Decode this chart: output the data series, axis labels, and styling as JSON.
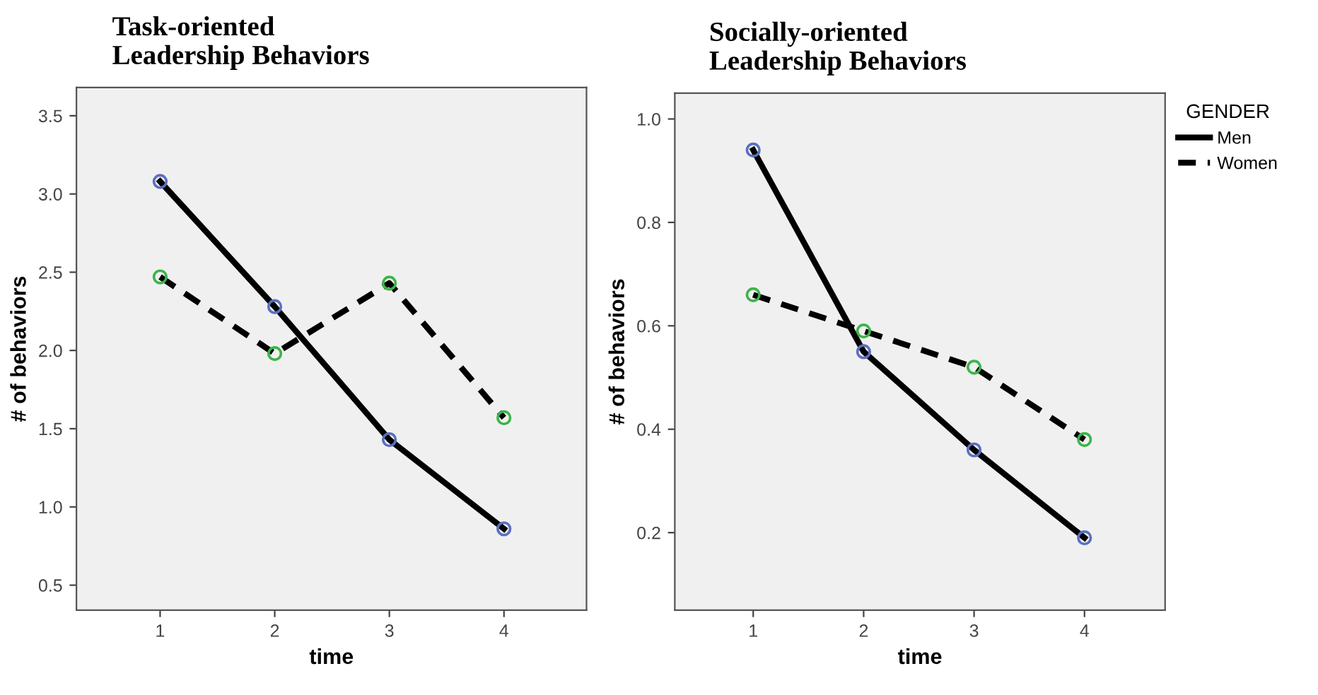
{
  "chart_data": [
    {
      "type": "line",
      "title": "Task-oriented\nLeadership Behaviors",
      "xlabel": "time",
      "ylabel": "# of behaviors",
      "x": [
        1,
        2,
        3,
        4
      ],
      "xlim": [
        0.27,
        4.72
      ],
      "xticks": [
        1,
        2,
        3,
        4
      ],
      "ylim": [
        0.34,
        3.68
      ],
      "yticks": [
        {
          "value": 0.5,
          "label": "0.5"
        },
        {
          "value": 1.0,
          "label": "1.0"
        },
        {
          "value": 1.5,
          "label": "1.5"
        },
        {
          "value": 2.0,
          "label": "2.0"
        },
        {
          "value": 2.5,
          "label": "2.5"
        },
        {
          "value": 3.0,
          "label": "3.0"
        },
        {
          "value": 3.5,
          "label": "3.5"
        }
      ],
      "grid": false,
      "marker": "circle",
      "series": [
        {
          "color": "#000000",
          "colors": [
            "#5b6fc0",
            "#5b6fc0",
            "#5b6fc0",
            "#5b6fc0"
          ],
          "line_style": "solid",
          "values": [
            3.08,
            2.28,
            1.43,
            0.86
          ]
        },
        {
          "color": "#000000",
          "colors": [
            "#3cb44a",
            "#3cb44a",
            "#3cb44a",
            "#3cb44a"
          ],
          "line_style": "dashed",
          "values": [
            2.47,
            1.98,
            2.43,
            1.57
          ]
        }
      ]
    },
    {
      "type": "line",
      "title": "Socially-oriented\nLeadership Behaviors",
      "xlabel": "time",
      "ylabel": "# of behaviors",
      "legend_title": "GENDER",
      "x": [
        1,
        2,
        3,
        4
      ],
      "xlim": [
        0.29,
        4.73
      ],
      "xticks": [
        1,
        2,
        3,
        4
      ],
      "ylim": [
        0.05,
        1.05
      ],
      "yticks": [
        {
          "value": 0.2,
          "label": "0.2"
        },
        {
          "value": 0.4,
          "label": "0.4"
        },
        {
          "value": 0.6,
          "label": "0.6"
        },
        {
          "value": 0.8,
          "label": "0.8"
        },
        {
          "value": 1.0,
          "label": "1.0"
        }
      ],
      "grid": false,
      "legend": "right",
      "marker": "circle",
      "series": [
        {
          "name": "Men",
          "color": "#000000",
          "colors": [
            "#5b6fc0",
            "#5b6fc0",
            "#5b6fc0",
            "#5b6fc0"
          ],
          "line_style": "solid",
          "values": [
            0.94,
            0.55,
            0.36,
            0.19
          ]
        },
        {
          "name": "Women",
          "color": "#000000",
          "colors": [
            "#3cb44a",
            "#3cb44a",
            "#3cb44a",
            "#3cb44a"
          ],
          "line_style": "dashed",
          "values": [
            0.66,
            0.59,
            0.52,
            0.38
          ]
        }
      ]
    }
  ]
}
